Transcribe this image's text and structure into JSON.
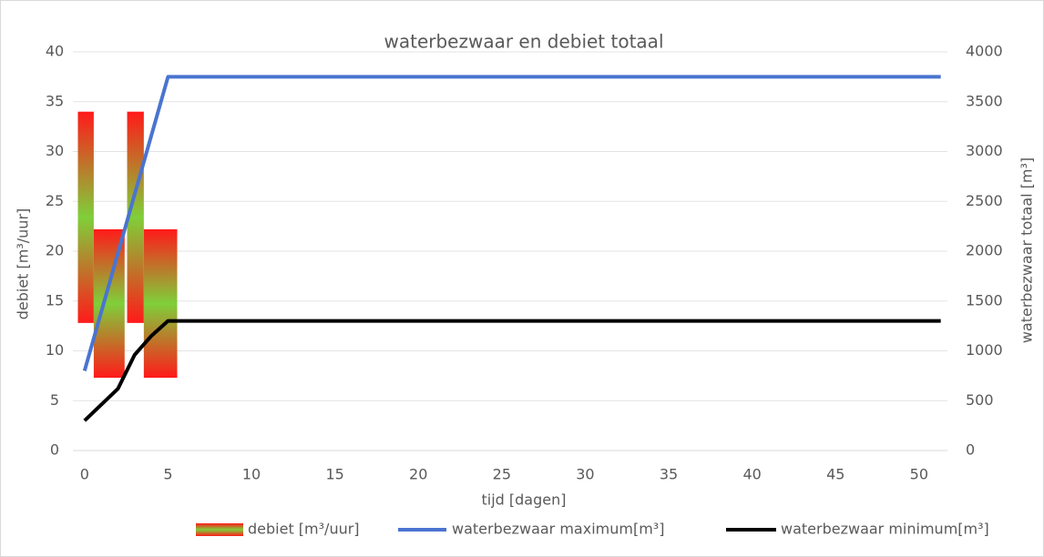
{
  "chart_data": {
    "type": "combo",
    "title": "waterbezwaar en debiet totaal",
    "x_label": "tijd [dagen]",
    "y_label": "debiet [m³/uur]",
    "y2_label": "waterbezwaar totaal [m³]",
    "xlim": [
      -0.7,
      51.7
    ],
    "xticks": [
      0,
      5,
      10,
      15,
      20,
      25,
      30,
      35,
      40,
      45,
      50
    ],
    "ylim": [
      0,
      40
    ],
    "yticks": [
      0,
      5,
      10,
      15,
      20,
      25,
      30,
      35,
      40
    ],
    "y2lim": [
      0,
      4000
    ],
    "y2ticks": [
      0,
      500,
      1000,
      1500,
      2000,
      2500,
      3000,
      3500,
      4000
    ],
    "grid": true,
    "legend": "bottom",
    "bars": {
      "name": "debiet [m³/uur]",
      "colors": [
        "#ff1a1a",
        "#7fcf3a"
      ],
      "x0": [
        -0.4,
        0.55,
        2.55,
        3.55
      ],
      "x1": [
        0.55,
        2.4,
        3.55,
        5.55
      ],
      "low": [
        12.8,
        7.3,
        12.8,
        7.3
      ],
      "high": [
        34,
        22.2,
        34,
        22.2
      ]
    },
    "series": [
      {
        "name": "waterbezwaar maximum[m³]",
        "color": "#4a74d0",
        "axis": "y2",
        "x": [
          0,
          5,
          51.3
        ],
        "values": [
          800,
          3750,
          3750
        ]
      },
      {
        "name": "waterbezwaar minimum[m³]",
        "color": "#000000",
        "axis": "y2",
        "x": [
          0,
          2,
          3,
          4,
          5,
          51.3
        ],
        "values": [
          300,
          620,
          960,
          1150,
          1300,
          1300
        ]
      }
    ]
  }
}
